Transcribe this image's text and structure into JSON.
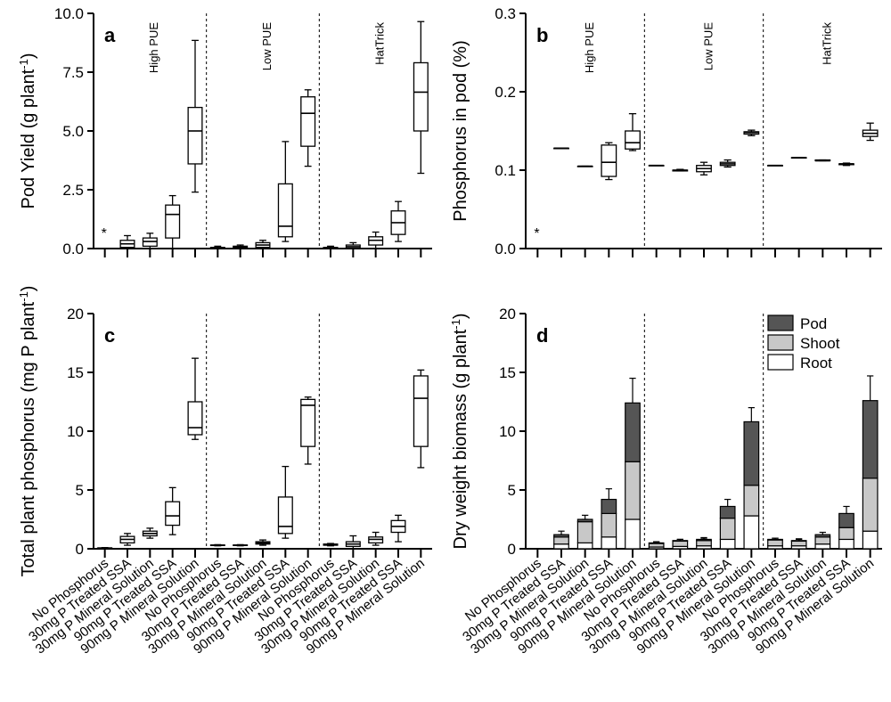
{
  "figure": {
    "categories": [
      "No Phosphorus",
      "30mg P Treated SSA",
      "30mg P Mineral Solution",
      "90mg P Treated SSA",
      "90mg P Mineral Solution"
    ],
    "groups": [
      "High PUE",
      "Low PUE",
      "HatTrick"
    ],
    "axis_unit": "-1"
  },
  "chart_data": [
    {
      "id": "a",
      "type": "box",
      "panel_letter": "a",
      "ylabel": "Pod Yield (g plant",
      "ylim": [
        0,
        10
      ],
      "yticks": [
        "0.0",
        "2.5",
        "5.0",
        "7.5",
        "10.0"
      ],
      "ytick_values": [
        0,
        2.5,
        5,
        7.5,
        10
      ],
      "asterisk": "*",
      "groups": [
        {
          "name": "High PUE",
          "boxes": [
            null,
            [
              0.0,
              0.05,
              0.2,
              0.35,
              0.55
            ],
            [
              0.0,
              0.1,
              0.3,
              0.45,
              0.65
            ],
            [
              0.0,
              0.45,
              1.45,
              1.85,
              2.25
            ],
            [
              2.4,
              3.6,
              5.0,
              6.0,
              8.85
            ]
          ]
        },
        {
          "name": "Low PUE",
          "boxes": [
            [
              0.0,
              0.0,
              0.02,
              0.05,
              0.1
            ],
            [
              0.0,
              0.01,
              0.05,
              0.1,
              0.15
            ],
            [
              0.0,
              0.05,
              0.15,
              0.25,
              0.35
            ],
            [
              0.3,
              0.5,
              0.95,
              2.75,
              4.55
            ],
            [
              3.5,
              4.35,
              5.75,
              6.45,
              6.75
            ]
          ]
        },
        {
          "name": "HatTrick",
          "boxes": [
            [
              0.0,
              0.0,
              0.02,
              0.05,
              0.1
            ],
            [
              0.0,
              0.02,
              0.08,
              0.15,
              0.25
            ],
            [
              0.0,
              0.15,
              0.35,
              0.5,
              0.7
            ],
            [
              0.3,
              0.6,
              1.1,
              1.6,
              2.0
            ],
            [
              3.2,
              5.0,
              6.65,
              7.9,
              9.65
            ]
          ]
        }
      ]
    },
    {
      "id": "b",
      "type": "box",
      "panel_letter": "b",
      "ylabel": "Phosphorus in pod (%)",
      "ylim": [
        0,
        0.3
      ],
      "yticks": [
        "0.0",
        "0.1",
        "0.2",
        "0.3"
      ],
      "ytick_values": [
        0,
        0.1,
        0.2,
        0.3
      ],
      "asterisk": "*",
      "groups": [
        {
          "name": "High PUE",
          "boxes": [
            null,
            [
              0.128,
              0.128,
              0.128,
              0.128,
              0.128
            ],
            [
              0.105,
              0.105,
              0.105,
              0.105,
              0.105
            ],
            [
              0.088,
              0.092,
              0.11,
              0.132,
              0.135
            ],
            [
              0.125,
              0.127,
              0.135,
              0.15,
              0.172
            ]
          ]
        },
        {
          "name": "Low PUE",
          "boxes": [
            [
              0.106,
              0.106,
              0.106,
              0.106,
              0.106
            ],
            [
              0.099,
              0.099,
              0.1,
              0.1,
              0.101
            ],
            [
              0.094,
              0.098,
              0.102,
              0.106,
              0.11
            ],
            [
              0.104,
              0.106,
              0.108,
              0.11,
              0.113
            ],
            [
              0.144,
              0.146,
              0.148,
              0.149,
              0.151
            ]
          ]
        },
        {
          "name": "HatTrick",
          "boxes": [
            [
              0.106,
              0.106,
              0.106,
              0.106,
              0.106
            ],
            [
              0.116,
              0.116,
              0.116,
              0.116,
              0.116
            ],
            [
              0.112,
              0.112,
              0.112,
              0.113,
              0.113
            ],
            [
              0.106,
              0.107,
              0.108,
              0.108,
              0.109
            ],
            [
              0.138,
              0.143,
              0.147,
              0.151,
              0.16
            ]
          ]
        }
      ]
    },
    {
      "id": "c",
      "type": "box",
      "panel_letter": "c",
      "ylabel": "Total plant phosphorus (mg P plant",
      "ylim": [
        0,
        20
      ],
      "yticks": [
        "0",
        "5",
        "10",
        "15",
        "20"
      ],
      "ytick_values": [
        0,
        5,
        10,
        15,
        20
      ],
      "groups": [
        {
          "name": "High PUE",
          "boxes": [
            [
              0.0,
              0.02,
              0.05,
              0.08,
              0.1
            ],
            [
              0.3,
              0.5,
              0.8,
              1.05,
              1.3
            ],
            [
              0.9,
              1.1,
              1.3,
              1.5,
              1.75
            ],
            [
              1.2,
              2.0,
              2.8,
              4.0,
              5.2
            ],
            [
              9.3,
              9.7,
              10.3,
              12.5,
              16.2
            ]
          ]
        },
        {
          "name": "Low PUE",
          "boxes": [
            [
              0.25,
              0.28,
              0.3,
              0.32,
              0.35
            ],
            [
              0.25,
              0.28,
              0.3,
              0.32,
              0.35
            ],
            [
              0.3,
              0.4,
              0.5,
              0.6,
              0.75
            ],
            [
              0.9,
              1.3,
              1.9,
              4.4,
              7.0
            ],
            [
              7.2,
              8.7,
              12.2,
              12.7,
              12.9
            ]
          ]
        },
        {
          "name": "HatTrick",
          "boxes": [
            [
              0.25,
              0.3,
              0.35,
              0.4,
              0.45
            ],
            [
              0.0,
              0.2,
              0.4,
              0.6,
              1.1
            ],
            [
              0.3,
              0.5,
              0.8,
              1.0,
              1.4
            ],
            [
              0.6,
              1.4,
              1.9,
              2.4,
              2.85
            ],
            [
              6.9,
              8.7,
              12.8,
              14.7,
              15.2
            ]
          ]
        }
      ]
    },
    {
      "id": "d",
      "type": "stacked_bar",
      "panel_letter": "d",
      "ylabel": "Dry weight biomass (g plant",
      "ylim": [
        0,
        20
      ],
      "yticks": [
        "0",
        "5",
        "10",
        "15",
        "20"
      ],
      "ytick_values": [
        0,
        5,
        10,
        15,
        20
      ],
      "legend_position": "top-right",
      "series": [
        {
          "name": "Pod",
          "color": "#555555"
        },
        {
          "name": "Shoot",
          "color": "#c8c8c8"
        },
        {
          "name": "Root",
          "color": "#ffffff"
        }
      ],
      "groups": [
        {
          "name": "High PUE",
          "bars": [
            null,
            {
              "root": 0.4,
              "root_err": 0.15,
              "shoot": 0.6,
              "shoot_err": 0.2,
              "pod": 0.2,
              "pod_err": 0.3
            },
            {
              "root": 0.5,
              "root_err": 0.15,
              "shoot": 1.8,
              "shoot_err": 0.2,
              "pod": 0.2,
              "pod_err": 0.35
            },
            {
              "root": 1.0,
              "root_err": 0.5,
              "shoot": 2.0,
              "shoot_err": 0.8,
              "pod": 1.2,
              "pod_err": 0.9
            },
            {
              "root": 2.5,
              "root_err": 0.6,
              "shoot": 4.9,
              "shoot_err": 2.5,
              "pod": 5.0,
              "pod_err": 2.1
            }
          ]
        },
        {
          "name": "Low PUE",
          "bars": [
            {
              "root": 0.15,
              "root_err": 0.1,
              "shoot": 0.3,
              "shoot_err": 0.1,
              "pod": 0.05,
              "pod_err": 0.1
            },
            {
              "root": 0.2,
              "root_err": 0.1,
              "shoot": 0.45,
              "shoot_err": 0.15,
              "pod": 0.05,
              "pod_err": 0.1
            },
            {
              "root": 0.25,
              "root_err": 0.15,
              "shoot": 0.45,
              "shoot_err": 0.2,
              "pod": 0.1,
              "pod_err": 0.15
            },
            {
              "root": 0.8,
              "root_err": 0.2,
              "shoot": 1.8,
              "shoot_err": 0.3,
              "pod": 1.0,
              "pod_err": 0.6
            },
            {
              "root": 2.8,
              "root_err": 1.4,
              "shoot": 2.6,
              "shoot_err": 0.9,
              "pod": 5.4,
              "pod_err": 1.2
            }
          ]
        },
        {
          "name": "HatTrick",
          "bars": [
            {
              "root": 0.25,
              "root_err": 0.1,
              "shoot": 0.5,
              "shoot_err": 0.15,
              "pod": 0.05,
              "pod_err": 0.1
            },
            {
              "root": 0.25,
              "root_err": 0.1,
              "shoot": 0.4,
              "shoot_err": 0.15,
              "pod": 0.05,
              "pod_err": 0.15
            },
            {
              "root": 0.4,
              "root_err": 0.15,
              "shoot": 0.6,
              "shoot_err": 0.15,
              "pod": 0.2,
              "pod_err": 0.2
            },
            {
              "root": 0.8,
              "root_err": 0.2,
              "shoot": 1.0,
              "shoot_err": 0.4,
              "pod": 1.2,
              "pod_err": 0.6
            },
            {
              "root": 1.5,
              "root_err": 0.9,
              "shoot": 4.5,
              "shoot_err": 1.4,
              "pod": 6.6,
              "pod_err": 2.1
            }
          ]
        }
      ]
    }
  ]
}
